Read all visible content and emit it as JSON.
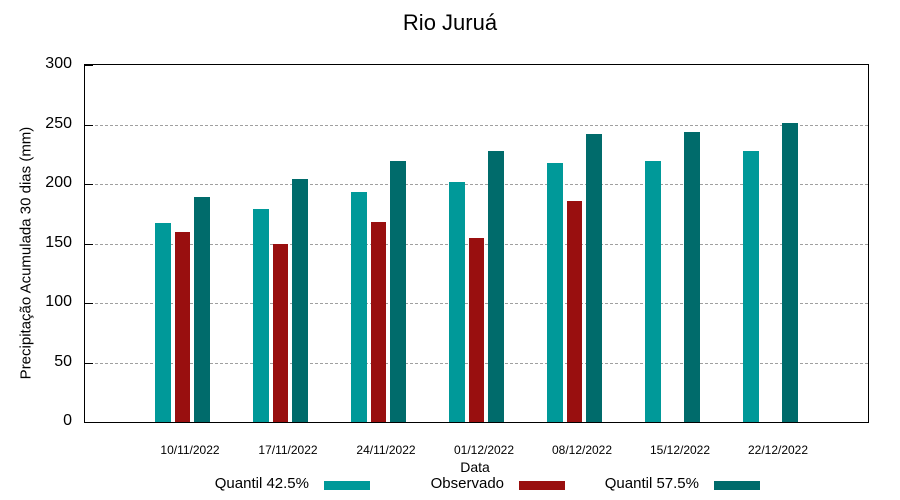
{
  "chart_data": {
    "type": "bar",
    "title": "Rio Juruá",
    "xlabel": "Data",
    "ylabel": "Precipitação Acumulada 30 dias (mm)",
    "ylim": [
      0,
      300
    ],
    "yticks": [
      0,
      50,
      100,
      150,
      200,
      250,
      300
    ],
    "grid": true,
    "legend_position": "bottom",
    "categories": [
      "10/11/2022",
      "17/11/2022",
      "24/11/2022",
      "01/12/2022",
      "08/12/2022",
      "15/12/2022",
      "22/12/2022"
    ],
    "series": [
      {
        "name": "Quantil 42.5%",
        "color": "#009999",
        "values": [
          167,
          179,
          193,
          202,
          218,
          219,
          228
        ]
      },
      {
        "name": "Observado",
        "color": "#990f0f",
        "values": [
          160,
          150,
          168,
          155,
          186,
          null,
          null
        ]
      },
      {
        "name": "Quantil 57.5%",
        "color": "#006b6b",
        "values": [
          189,
          204,
          219,
          228,
          242,
          244,
          251
        ]
      }
    ]
  }
}
